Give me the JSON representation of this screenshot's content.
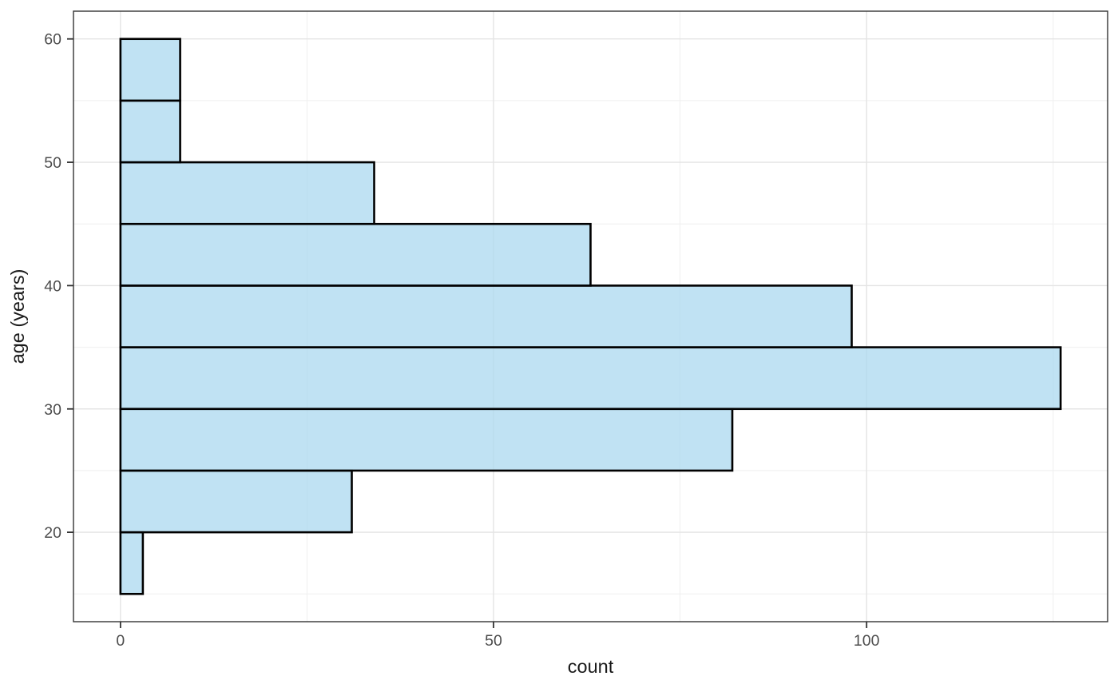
{
  "chart_data": {
    "type": "bar",
    "subtype": "histogram",
    "orientation": "horizontal",
    "title": "",
    "xlabel": "count",
    "ylabel": "age (years)",
    "bin_width": 5,
    "bins": [
      {
        "age_from": 15,
        "age_to": 20,
        "count": 3
      },
      {
        "age_from": 20,
        "age_to": 25,
        "count": 31
      },
      {
        "age_from": 25,
        "age_to": 30,
        "count": 82
      },
      {
        "age_from": 30,
        "age_to": 35,
        "count": 126
      },
      {
        "age_from": 35,
        "age_to": 40,
        "count": 98
      },
      {
        "age_from": 40,
        "age_to": 45,
        "count": 63
      },
      {
        "age_from": 45,
        "age_to": 50,
        "count": 34
      },
      {
        "age_from": 50,
        "age_to": 55,
        "count": 8
      },
      {
        "age_from": 55,
        "age_to": 60,
        "count": 8
      }
    ],
    "x_ticks": [
      0,
      50,
      100
    ],
    "x_minor_ticks": [
      25,
      75,
      125
    ],
    "y_ticks": [
      20,
      30,
      40,
      50,
      60
    ],
    "y_minor_ticks": [
      15,
      25,
      35,
      45,
      55
    ],
    "xlim": [
      -6.3,
      132.3
    ],
    "ylim": [
      12.75,
      62.25
    ],
    "grid": true,
    "legend": null,
    "colors": {
      "bar_fill": "#a7d7ee",
      "bar_fill_alpha": 0.72,
      "bar_stroke": "#000000",
      "grid_major": "#e4e4e4",
      "grid_minor": "#efefef",
      "panel_border": "#333333",
      "tick_mark": "#333333",
      "tick_label": "#4d4d4d",
      "axis_title": "#1a1a1a",
      "panel_background": "#ffffff"
    }
  }
}
